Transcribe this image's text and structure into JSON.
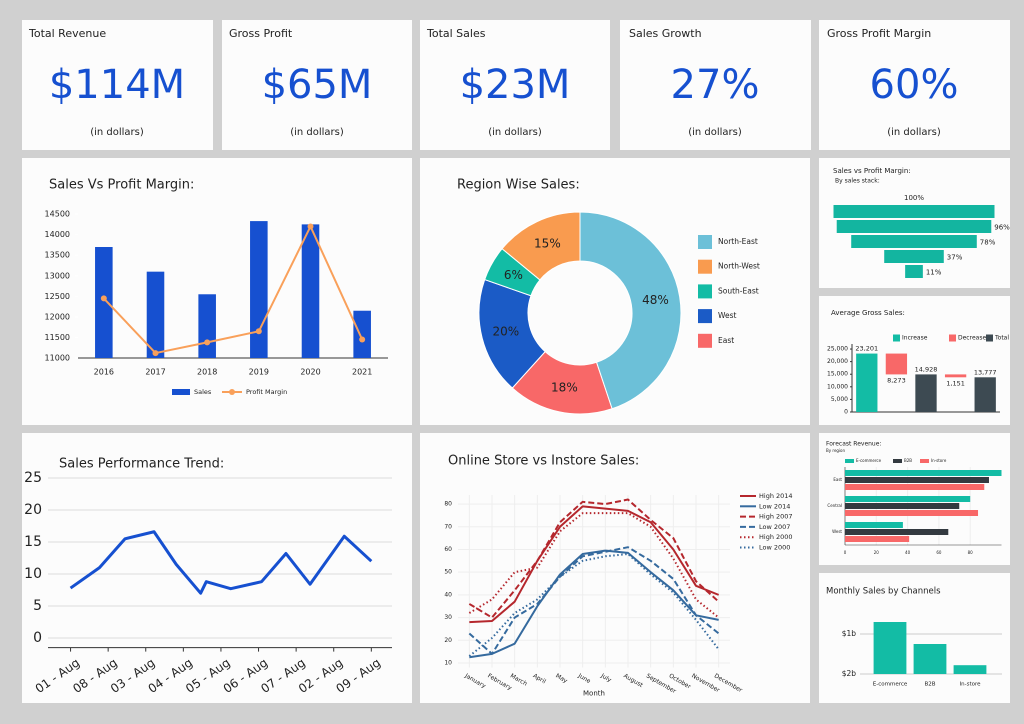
{
  "kpis": [
    {
      "title": "Total Revenue",
      "value": "$114M",
      "note": "(in dollars)"
    },
    {
      "title": "Gross Profit",
      "value": "$65M",
      "note": "(in dollars)"
    },
    {
      "title": "Total Sales",
      "value": "$23M",
      "note": "(in dollars)"
    },
    {
      "title": "Sales Growth",
      "value": "27%",
      "note": "(in dollars)"
    },
    {
      "title": "Gross Profit Margin",
      "value": "60%",
      "note": "(in dollars)"
    }
  ],
  "chart_data": [
    {
      "type": "combo",
      "title": "Sales Vs Profit Margin:",
      "categories": [
        "2016",
        "2017",
        "2018",
        "2019",
        "2020",
        "2021"
      ],
      "series": [
        {
          "name": "Sales",
          "type": "bar",
          "color": "#1650d0",
          "values": [
            13700,
            13100,
            12550,
            14330,
            14250,
            12150
          ]
        },
        {
          "name": "Profit Margin",
          "type": "line",
          "color": "#f9a05a",
          "values": [
            12450,
            11120,
            11380,
            11650,
            14200,
            11450
          ]
        }
      ],
      "ylim": [
        11000,
        14600
      ],
      "yticks": [
        11000,
        11500,
        12000,
        12500,
        13000,
        13500,
        14000,
        14500
      ],
      "legend": "bottom"
    },
    {
      "type": "pie",
      "title": "Region Wise Sales:",
      "categories": [
        "North-East",
        "North-West",
        "South-East",
        "West",
        "East"
      ],
      "values": [
        48,
        15,
        6,
        20,
        18
      ],
      "value_labels": [
        "48%",
        "15%",
        "6%",
        "20%",
        "18%"
      ],
      "colors": [
        "#6cc0d8",
        "#f99b4f",
        "#13bca5",
        "#1b5bc6",
        "#f86868"
      ],
      "hole": true,
      "legend": "right"
    },
    {
      "type": "funnel",
      "title": "Sales vs Profit Margin:",
      "subtitle": "By sales stack:",
      "values": [
        100,
        96,
        78,
        37,
        11
      ],
      "value_labels": [
        "100%",
        "96%",
        "78%",
        "37%",
        "11%"
      ],
      "color": "#13b5a0"
    },
    {
      "type": "waterfall",
      "title": "Average Gross Sales:",
      "values": [
        23201,
        8273,
        14928,
        1151,
        13777
      ],
      "value_labels": [
        "23,201",
        "8,273",
        "14,928",
        "1,151",
        "13,777"
      ],
      "measures": [
        "increase",
        "decrease",
        "total",
        "decrease",
        "total"
      ],
      "measure_styles": [
        {
          "measure": "increase",
          "name": "Increase",
          "color": "#13bca5"
        },
        {
          "measure": "decrease",
          "name": "Decrease",
          "color": "#f86868"
        },
        {
          "measure": "total",
          "name": "Total",
          "color": "#3d4a52"
        }
      ],
      "ylim": [
        0,
        27000
      ],
      "yticks": [
        0,
        {
          "value": 5000,
          "label": "5,000"
        },
        {
          "value": 10000,
          "label": "10,000"
        },
        {
          "value": 15000,
          "label": "15,000"
        },
        {
          "value": 20000,
          "label": "20,000"
        },
        {
          "value": 25000,
          "label": "25,000"
        }
      ],
      "legend": "top"
    },
    {
      "type": "line",
      "title": "Sales Performance Trend:",
      "x": [
        0,
        0.77,
        1.45,
        2.22,
        2.81,
        3.46,
        3.61,
        4.26,
        5.08,
        5.73,
        6.37,
        7.28,
        8
      ],
      "values": [
        7.8,
        11,
        15.5,
        16.6,
        11.5,
        7,
        8.8,
        7.7,
        8.8,
        13.2,
        8.4,
        15.9,
        12
      ],
      "color": "#1650d0",
      "xlim": [
        -0.6,
        8.55
      ],
      "xticks": [
        {
          "value": 0,
          "label": "01 - Aug"
        },
        {
          "value": 1,
          "label": "08 - Aug"
        },
        {
          "value": 2,
          "label": "03 - Aug"
        },
        {
          "value": 3,
          "label": "04 - Aug"
        },
        {
          "value": 4,
          "label": "05 - Aug"
        },
        {
          "value": 5,
          "label": "06 - Aug"
        },
        {
          "value": 6,
          "label": "07 - Aug"
        },
        {
          "value": 7,
          "label": "02 - Aug"
        },
        {
          "value": 8,
          "label": "09 - Aug"
        }
      ],
      "ylim": [
        -1.5,
        26
      ],
      "yticks": [
        0,
        5,
        10,
        15,
        20,
        25
      ],
      "grid": true
    },
    {
      "type": "line",
      "title": "Online Store vs Instore Sales:",
      "x_label": "Month",
      "categories": [
        "January",
        "February",
        "March",
        "April",
        "May",
        "June",
        "July",
        "August",
        "September",
        "October",
        "November",
        "December"
      ],
      "series": [
        {
          "name": "High 2014",
          "color": "#b5272d",
          "dash": "solid",
          "values": [
            28,
            28.5,
            37,
            55,
            70,
            79,
            78,
            77,
            72,
            60,
            44,
            40
          ]
        },
        {
          "name": "Low 2014",
          "color": "#356a9e",
          "dash": "solid",
          "values": [
            12.5,
            14,
            18.5,
            35,
            49,
            58,
            59.5,
            58.5,
            50,
            42,
            31,
            29
          ]
        },
        {
          "name": "High 2007",
          "color": "#b5272d",
          "dash": "dash",
          "values": [
            36,
            30,
            42,
            55,
            72,
            81,
            80,
            82,
            73,
            65,
            46,
            37
          ]
        },
        {
          "name": "Low 2007",
          "color": "#356a9e",
          "dash": "dash",
          "values": [
            23,
            14,
            30,
            36,
            48,
            57,
            59,
            61,
            55,
            47,
            31,
            23
          ]
        },
        {
          "name": "High 2000",
          "color": "#b5272d",
          "dash": "dot",
          "values": [
            32,
            38,
            50,
            52,
            68,
            76,
            76,
            76,
            70,
            56,
            38,
            30
          ]
        },
        {
          "name": "Low 2000",
          "color": "#356a9e",
          "dash": "dot",
          "values": [
            13,
            21,
            32,
            38,
            48,
            55,
            57,
            58,
            49,
            41,
            29,
            16
          ]
        }
      ],
      "ylim": [
        8,
        84
      ],
      "yticks": [
        10,
        20,
        30,
        40,
        50,
        60,
        70,
        80
      ],
      "grid": true,
      "legend": "upper right"
    },
    {
      "type": "hbar",
      "title": "Forecast Revenue:",
      "subtitle": "By region",
      "categories": [
        "East",
        "Central",
        "West"
      ],
      "series": [
        {
          "name": "E-commerce",
          "color": "#13bca5",
          "values": [
            100,
            80,
            37
          ]
        },
        {
          "name": "B2B",
          "color": "#333a40",
          "values": [
            92,
            73,
            66
          ]
        },
        {
          "name": "In-store",
          "color": "#f86868",
          "values": [
            89,
            85,
            41
          ]
        }
      ],
      "xlim": [
        0,
        100
      ],
      "xticks": [
        0,
        20,
        40,
        60,
        80
      ],
      "legend": "top"
    },
    {
      "type": "bar",
      "title": "Monthly Sales by Channels",
      "categories": [
        "E-commerce",
        "B2B",
        "In-store"
      ],
      "values": [
        0.7,
        1.25,
        1.78
      ],
      "color": "#13bca5",
      "ylim": [
        2,
        0.6
      ],
      "yticks": [
        {
          "value": 1,
          "label": "$1b"
        },
        {
          "value": 2,
          "label": "$2b"
        }
      ],
      "grid": true
    }
  ]
}
